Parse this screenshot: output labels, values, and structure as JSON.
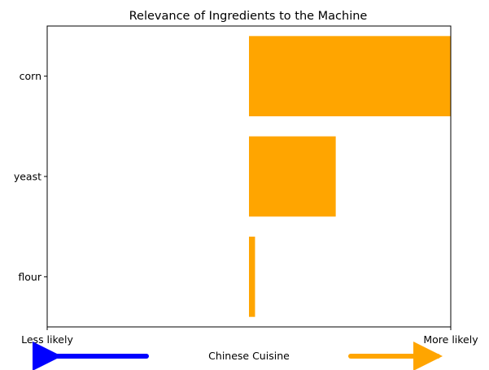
{
  "chart_data": {
    "type": "bar",
    "orientation": "horizontal",
    "title": "Relevance of Ingredients to the Machine",
    "categories": [
      "corn",
      "yeast",
      "flour"
    ],
    "values": [
      1.0,
      0.43,
      0.03
    ],
    "xlim": [
      -1,
      1
    ],
    "bar_color": "#ffa500",
    "grid": false,
    "x_tick_labels": {
      "left": "Less likely",
      "right": "More likely"
    },
    "bottom_label": "Chinese Cuisine",
    "arrows": [
      {
        "direction": "left",
        "color": "#0000ff"
      },
      {
        "direction": "right",
        "color": "#ffa500"
      }
    ]
  }
}
